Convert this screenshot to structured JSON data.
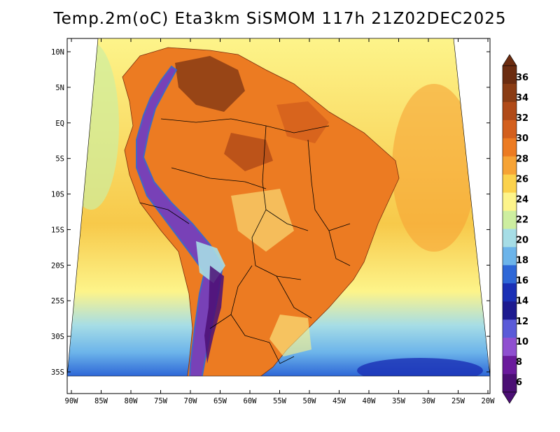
{
  "title": "Temp.2m(oC) Eta3km SiSMOM 117h 21Z02DEC2025",
  "map": {
    "variable": "2-metre temperature",
    "units": "oC",
    "lon_labels": [
      "90W",
      "85W",
      "80W",
      "75W",
      "70W",
      "65W",
      "60W",
      "55W",
      "50W",
      "45W",
      "40W",
      "35W",
      "30W",
      "25W",
      "20W"
    ],
    "lat_labels": [
      "10N",
      "5N",
      "EQ",
      "5S",
      "10S",
      "15S",
      "20S",
      "25S",
      "30S",
      "35S"
    ]
  },
  "colorbar": {
    "labels": [
      "36",
      "34",
      "32",
      "30",
      "28",
      "26",
      "24",
      "22",
      "20",
      "18",
      "16",
      "14",
      "12",
      "10",
      "8",
      "6"
    ],
    "colors": [
      "#6b2c10",
      "#8a3c14",
      "#b04a18",
      "#d35f1d",
      "#ec7b22",
      "#f6a335",
      "#fbd24c",
      "#fdf48a",
      "#cdeea0",
      "#a6dde6",
      "#6cb4ea",
      "#2e67d7",
      "#1a2fb5",
      "#1d1a8f",
      "#5a5ad8",
      "#8f4fd0",
      "#6a1a9c",
      "#4b0f74"
    ]
  },
  "colors": {
    "ocean": "#fbd24c",
    "land": "#ec7b22",
    "background": "#ffffff"
  }
}
